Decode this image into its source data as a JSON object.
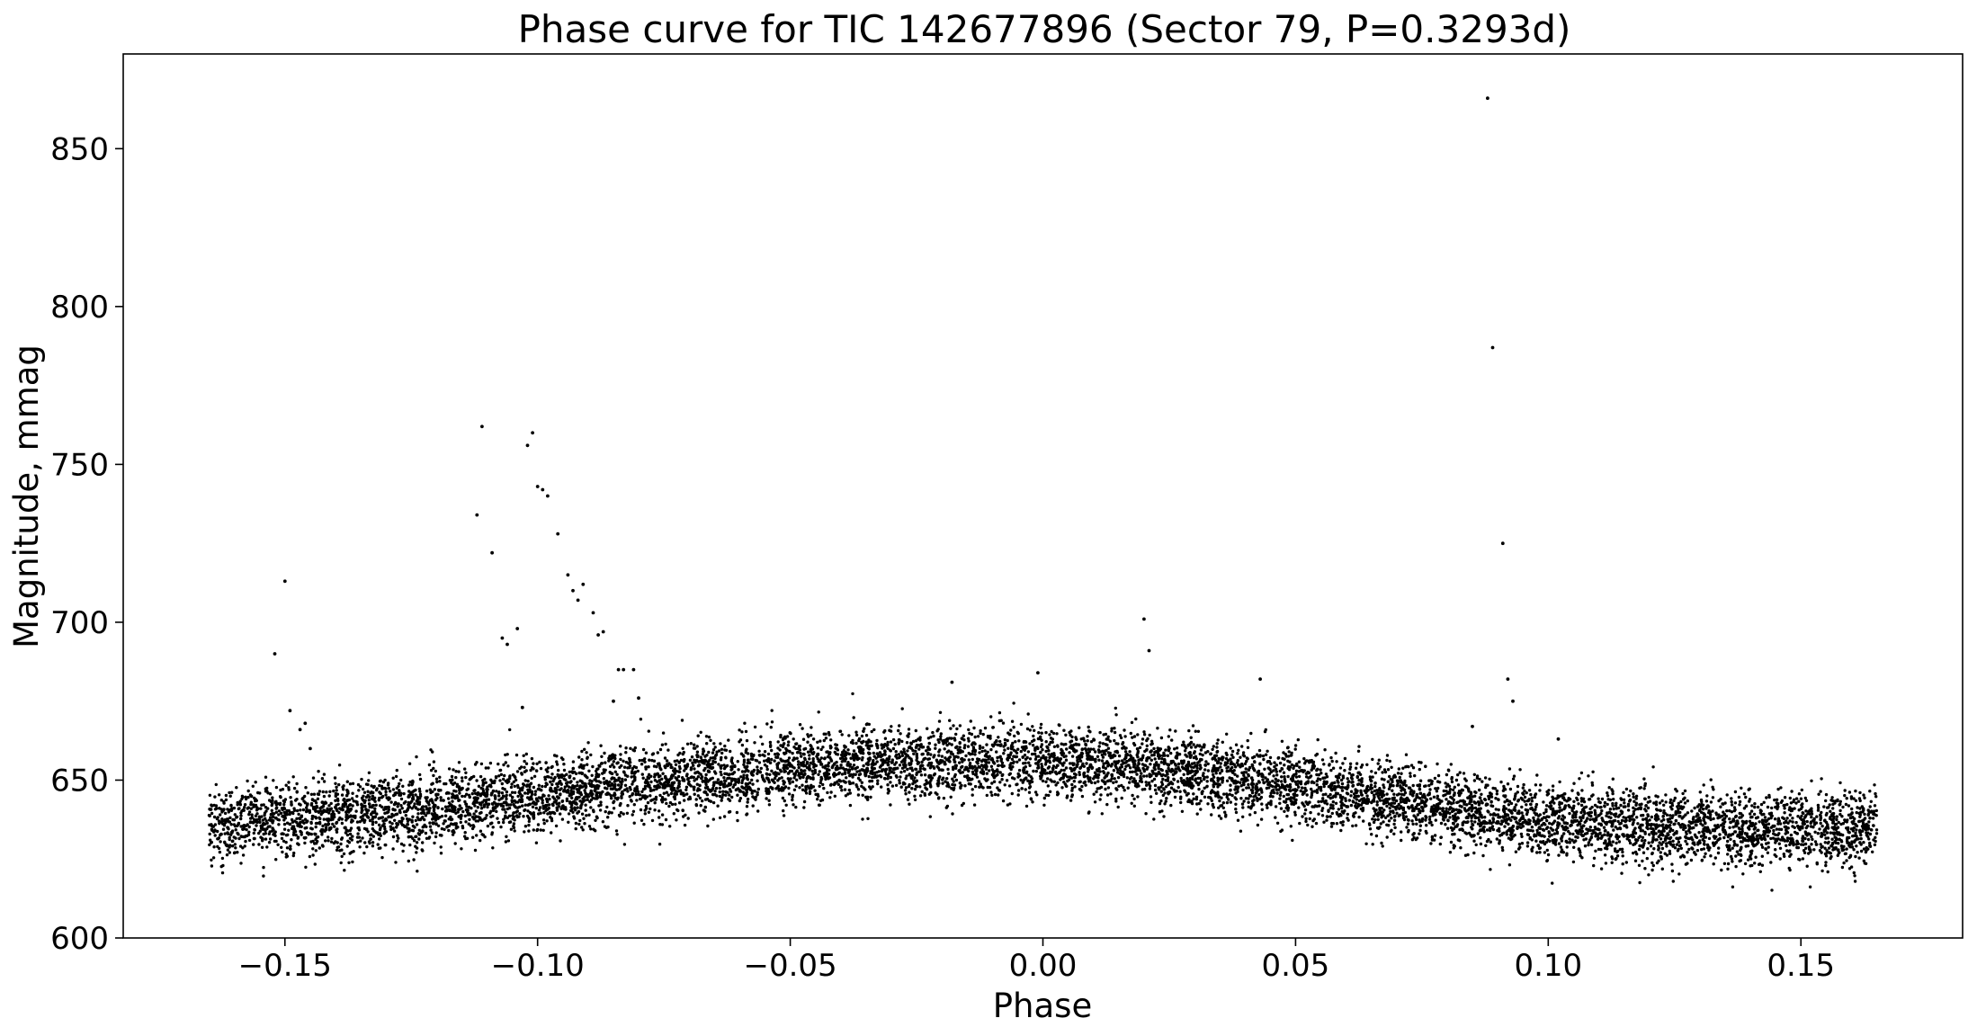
{
  "chart_data": {
    "type": "scatter",
    "title": "Phase curve for TIC 142677896 (Sector 79, P=0.3293d)",
    "xlabel": "Phase",
    "ylabel": "Magnitude, mmag",
    "xlim": [
      -0.182,
      0.182
    ],
    "ylim": [
      600,
      880
    ],
    "xticks": [
      -0.15,
      -0.1,
      -0.05,
      0.0,
      0.05,
      0.1,
      0.15
    ],
    "xtick_labels": [
      "−0.15",
      "−0.10",
      "−0.05",
      "0.00",
      "0.05",
      "0.10",
      "0.15"
    ],
    "yticks": [
      600,
      650,
      700,
      750,
      800,
      850
    ],
    "ytick_labels": [
      "600",
      "650",
      "700",
      "750",
      "800",
      "850"
    ],
    "grid": false,
    "legend": "none",
    "marker_color": "#000000",
    "x_range": [
      -0.165,
      0.165
    ],
    "trend": {
      "description": "baseline magnitude versus phase",
      "x": [
        -0.165,
        -0.15,
        -0.12,
        -0.1,
        -0.08,
        -0.06,
        -0.04,
        -0.02,
        0.0,
        0.02,
        0.04,
        0.06,
        0.08,
        0.1,
        0.12,
        0.14,
        0.165
      ],
      "y": [
        636,
        638,
        641,
        645,
        649,
        652,
        655,
        656,
        656,
        654,
        650,
        646,
        641,
        637,
        635,
        634,
        635
      ]
    },
    "scatter_sd": 7,
    "outliers": [
      {
        "x": -0.152,
        "y": 690
      },
      {
        "x": -0.15,
        "y": 713
      },
      {
        "x": -0.149,
        "y": 672
      },
      {
        "x": -0.147,
        "y": 666
      },
      {
        "x": -0.146,
        "y": 668
      },
      {
        "x": -0.145,
        "y": 660
      },
      {
        "x": -0.112,
        "y": 734
      },
      {
        "x": -0.111,
        "y": 762
      },
      {
        "x": -0.109,
        "y": 722
      },
      {
        "x": -0.107,
        "y": 695
      },
      {
        "x": -0.106,
        "y": 693
      },
      {
        "x": -0.104,
        "y": 698
      },
      {
        "x": -0.103,
        "y": 673
      },
      {
        "x": -0.102,
        "y": 756
      },
      {
        "x": -0.101,
        "y": 760
      },
      {
        "x": -0.1,
        "y": 743
      },
      {
        "x": -0.099,
        "y": 742
      },
      {
        "x": -0.098,
        "y": 740
      },
      {
        "x": -0.096,
        "y": 728
      },
      {
        "x": -0.094,
        "y": 715
      },
      {
        "x": -0.093,
        "y": 710
      },
      {
        "x": -0.092,
        "y": 707
      },
      {
        "x": -0.091,
        "y": 712
      },
      {
        "x": -0.089,
        "y": 703
      },
      {
        "x": -0.088,
        "y": 696
      },
      {
        "x": -0.087,
        "y": 697
      },
      {
        "x": -0.084,
        "y": 685
      },
      {
        "x": -0.083,
        "y": 685
      },
      {
        "x": -0.081,
        "y": 685
      },
      {
        "x": -0.085,
        "y": 675
      },
      {
        "x": -0.08,
        "y": 676
      },
      {
        "x": -0.018,
        "y": 681
      },
      {
        "x": -0.001,
        "y": 684
      },
      {
        "x": 0.02,
        "y": 701
      },
      {
        "x": 0.021,
        "y": 691
      },
      {
        "x": 0.043,
        "y": 682
      },
      {
        "x": 0.088,
        "y": 866
      },
      {
        "x": 0.089,
        "y": 787
      },
      {
        "x": 0.091,
        "y": 725
      },
      {
        "x": 0.092,
        "y": 682
      },
      {
        "x": 0.093,
        "y": 675
      },
      {
        "x": 0.085,
        "y": 667
      },
      {
        "x": 0.102,
        "y": 663
      }
    ]
  }
}
